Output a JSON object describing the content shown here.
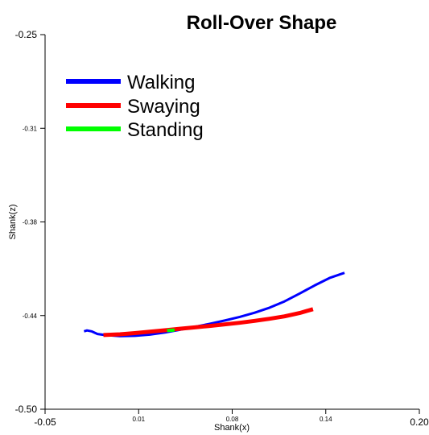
{
  "chart_data": {
    "type": "line",
    "title": "Roll-Over Shape",
    "xlabel": "Shank(x)",
    "ylabel": "Shank(z)",
    "xlim": [
      -0.05,
      0.2
    ],
    "ylim": [
      -0.5,
      -0.25
    ],
    "xticks": [
      {
        "value": -0.05,
        "label": "-0.05",
        "major": true
      },
      {
        "value": 0.0125,
        "label": "0.01",
        "major": false
      },
      {
        "value": 0.075,
        "label": "0.08",
        "major": false
      },
      {
        "value": 0.1375,
        "label": "0.14",
        "major": false
      },
      {
        "value": 0.2,
        "label": "0.20",
        "major": true
      }
    ],
    "yticks": [
      {
        "value": -0.25,
        "label": "-0.25",
        "major": true
      },
      {
        "value": -0.3125,
        "label": "-0.31",
        "major": false
      },
      {
        "value": -0.375,
        "label": "-0.38",
        "major": false
      },
      {
        "value": -0.4375,
        "label": "-0.44",
        "major": false
      },
      {
        "value": -0.5,
        "label": "-0.50",
        "major": true
      }
    ],
    "grid": false,
    "legend_position": "top-left",
    "series": [
      {
        "name": "Walking",
        "color": "#0000ff",
        "points": [
          [
            -0.024,
            -0.448
          ],
          [
            -0.022,
            -0.4474
          ],
          [
            -0.019,
            -0.448
          ],
          [
            -0.015,
            -0.4498
          ],
          [
            -0.01,
            -0.4505
          ],
          [
            0.0,
            -0.4512
          ],
          [
            0.01,
            -0.451
          ],
          [
            0.02,
            -0.4502
          ],
          [
            0.03,
            -0.4488
          ],
          [
            0.04,
            -0.447
          ],
          [
            0.05,
            -0.445
          ],
          [
            0.06,
            -0.443
          ],
          [
            0.07,
            -0.4408
          ],
          [
            0.08,
            -0.4384
          ],
          [
            0.09,
            -0.4356
          ],
          [
            0.1,
            -0.4322
          ],
          [
            0.11,
            -0.428
          ],
          [
            0.12,
            -0.4228
          ],
          [
            0.13,
            -0.4174
          ],
          [
            0.14,
            -0.4124
          ],
          [
            0.15,
            -0.409
          ]
        ]
      },
      {
        "name": "Swaying",
        "color": "#ff0000",
        "points": [
          [
            -0.011,
            -0.4505
          ],
          [
            0.0,
            -0.45
          ],
          [
            0.01,
            -0.4492
          ],
          [
            0.02,
            -0.4482
          ],
          [
            0.03,
            -0.4473
          ],
          [
            0.04,
            -0.4463
          ],
          [
            0.05,
            -0.4454
          ],
          [
            0.06,
            -0.4444
          ],
          [
            0.07,
            -0.4434
          ],
          [
            0.08,
            -0.4423
          ],
          [
            0.09,
            -0.441
          ],
          [
            0.1,
            -0.4396
          ],
          [
            0.11,
            -0.438
          ],
          [
            0.12,
            -0.4358
          ],
          [
            0.129,
            -0.4332
          ]
        ]
      },
      {
        "name": "Standing",
        "color": "#00ff00",
        "points": [
          [
            0.0315,
            -0.4475
          ],
          [
            0.0365,
            -0.4472
          ]
        ]
      }
    ]
  }
}
